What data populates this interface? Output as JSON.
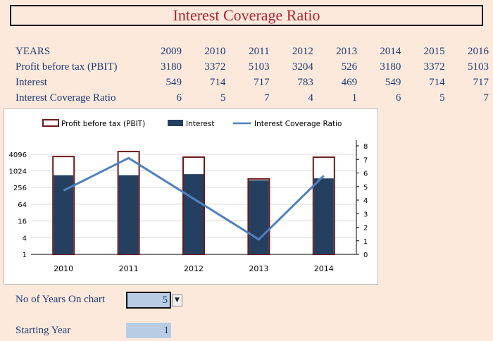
{
  "title": "Interest Coverage Ratio",
  "table": {
    "years_label": "YEARS",
    "years": [
      "2009",
      "2010",
      "2011",
      "2012",
      "2013",
      "2014",
      "2015",
      "2016"
    ],
    "rows": [
      {
        "label": "Profit before tax (PBIT)",
        "values": [
          "3180",
          "3372",
          "5103",
          "3204",
          "526",
          "3180",
          "3372",
          "5103"
        ]
      },
      {
        "label": "Interest",
        "values": [
          "549",
          "714",
          "717",
          "783",
          "469",
          "549",
          "714",
          "717"
        ]
      },
      {
        "label": "Interest Coverage Ratio",
        "values": [
          "6",
          "5",
          "7",
          "4",
          "1",
          "6",
          "5",
          "7"
        ]
      }
    ]
  },
  "chart_data": {
    "type": "bar",
    "categories": [
      "2010",
      "2011",
      "2012",
      "2013",
      "2014"
    ],
    "series": [
      {
        "name": "Profit before tax (PBIT)",
        "kind": "bar",
        "values": [
          3372,
          5103,
          3204,
          526,
          3180
        ],
        "color": "#ffffff",
        "stroke": "#6b1a1a"
      },
      {
        "name": "Interest",
        "kind": "bar",
        "values": [
          714,
          717,
          783,
          469,
          549
        ],
        "color": "#243f60"
      },
      {
        "name": "Interest Coverage Ratio",
        "kind": "line",
        "axis": "secondary",
        "values": [
          4.7,
          7.1,
          4.1,
          1.1,
          5.8
        ],
        "color": "#4f81bd"
      }
    ],
    "y_axis": {
      "scale": "log",
      "base": 2,
      "ticks": [
        "1",
        "4",
        "16",
        "64",
        "256",
        "1024",
        "4096"
      ],
      "ylim": [
        1,
        8192
      ]
    },
    "y2_axis": {
      "ticks": [
        "0",
        "1",
        "2",
        "3",
        "4",
        "5",
        "6",
        "7",
        "8"
      ],
      "ylim": [
        0,
        8
      ]
    },
    "legend": "top",
    "grid": true
  },
  "controls": {
    "years_on_chart_label": "No of Years On chart",
    "years_on_chart_value": "5",
    "starting_year_label": "Starting Year",
    "starting_year_value": "1"
  }
}
